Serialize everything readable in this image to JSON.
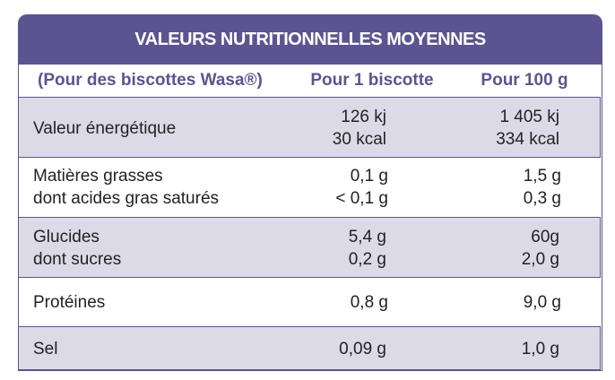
{
  "header": {
    "title": "VALEURS NUTRITIONNELLES MOYENNES"
  },
  "columns": [
    "(Pour des biscottes Wasa®)",
    "Pour 1 biscotte",
    "Pour 100 g"
  ],
  "rows": [
    {
      "label": [
        "Valeur énergétique"
      ],
      "per_biscotte": [
        "126 kj",
        "30 kcal"
      ],
      "per_100g": [
        "1 405 kj",
        "334 kcal"
      ]
    },
    {
      "label": [
        "Matières grasses",
        "dont acides gras saturés"
      ],
      "per_biscotte": [
        "0,1 g",
        "< 0,1 g"
      ],
      "per_100g": [
        "1,5 g",
        "0,3 g"
      ]
    },
    {
      "label": [
        "Glucides",
        "dont sucres"
      ],
      "per_biscotte": [
        "5,4 g",
        "0,2 g"
      ],
      "per_100g": [
        "60g",
        "2,0 g"
      ]
    },
    {
      "label": [
        "Protéines"
      ],
      "per_biscotte": [
        "0,8 g"
      ],
      "per_100g": [
        "9,0 g"
      ]
    },
    {
      "label": [
        "Sel"
      ],
      "per_biscotte": [
        "0,09 g"
      ],
      "per_100g": [
        "1,0 g"
      ]
    }
  ]
}
